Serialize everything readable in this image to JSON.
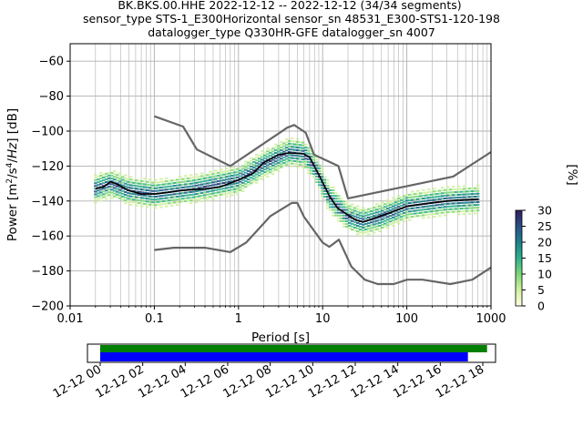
{
  "title_lines": [
    "BK.BKS.00.HHE   2022-12-12 -- 2022-12-12  (34/34 segments)",
    "sensor_type STS-1_E300Horizontal sensor_sn 48531_E300-STS1-120-198",
    "datalogger_type Q330HR-GFE datalogger_sn 4007"
  ],
  "chart_data": {
    "type": "heatmap",
    "xlabel": "Period [s]",
    "ylabel": "Power [m²/s⁴/Hz] [dB]",
    "xscale": "log",
    "xlim": [
      0.01,
      1000
    ],
    "ylim": [
      -200,
      -50
    ],
    "xticks": [
      0.01,
      0.1,
      1,
      10,
      100,
      1000
    ],
    "xtick_labels": [
      "0.01",
      "0.1",
      "1",
      "10",
      "100",
      "1000"
    ],
    "yticks": [
      -200,
      -180,
      -160,
      -140,
      -120,
      -100,
      -80,
      -60
    ],
    "grid": true,
    "series": [
      {
        "role": "noise model high",
        "color": "#666666",
        "points": [
          [
            0.1,
            -91.5
          ],
          [
            0.22,
            -97.4
          ],
          [
            0.32,
            -110.5
          ],
          [
            0.8,
            -120
          ],
          [
            3.8,
            -98
          ],
          [
            4.6,
            -96.5
          ],
          [
            6.3,
            -101
          ],
          [
            7.9,
            -113.5
          ],
          [
            15.4,
            -120
          ],
          [
            20,
            -138.5
          ],
          [
            354.8,
            -126
          ],
          [
            1000,
            -112
          ]
        ]
      },
      {
        "role": "noise model low",
        "color": "#666666",
        "points": [
          [
            0.1,
            -168
          ],
          [
            0.17,
            -166.7
          ],
          [
            0.4,
            -166.7
          ],
          [
            0.8,
            -169.2
          ],
          [
            1.24,
            -163.7
          ],
          [
            2.4,
            -148.6
          ],
          [
            4.3,
            -141.1
          ],
          [
            5,
            -141.1
          ],
          [
            6,
            -149
          ],
          [
            10,
            -163.8
          ],
          [
            12,
            -166.2
          ],
          [
            15.6,
            -162.1
          ],
          [
            21.9,
            -177.5
          ],
          [
            31.6,
            -185
          ],
          [
            45,
            -187.5
          ],
          [
            70,
            -187.5
          ],
          [
            101,
            -185
          ],
          [
            154,
            -185
          ],
          [
            328,
            -187.5
          ],
          [
            600,
            -185
          ],
          [
            1000,
            -178
          ]
        ]
      },
      {
        "role": "mean",
        "color": "#000000",
        "points": [
          [
            0.02,
            -133
          ],
          [
            0.025,
            -132
          ],
          [
            0.03,
            -129
          ],
          [
            0.035,
            -130
          ],
          [
            0.05,
            -134
          ],
          [
            0.07,
            -136
          ],
          [
            0.1,
            -136
          ],
          [
            0.15,
            -135
          ],
          [
            0.2,
            -134
          ],
          [
            0.4,
            -133
          ],
          [
            0.6,
            -132
          ],
          [
            1,
            -128
          ],
          [
            1.5,
            -124
          ],
          [
            2,
            -118
          ],
          [
            3,
            -113.5
          ],
          [
            4,
            -112.5
          ],
          [
            6,
            -113
          ],
          [
            7,
            -115
          ],
          [
            9,
            -125
          ],
          [
            12,
            -137
          ],
          [
            15,
            -144
          ],
          [
            20,
            -148
          ],
          [
            25,
            -151
          ],
          [
            30,
            -152
          ],
          [
            40,
            -150
          ],
          [
            60,
            -147
          ],
          [
            100,
            -143
          ],
          [
            200,
            -141
          ],
          [
            300,
            -140
          ],
          [
            400,
            -139.5
          ],
          [
            700,
            -139
          ]
        ]
      }
    ],
    "density_band": {
      "description": "probability density of segment PSDs",
      "points": [
        [
          0.02,
          -133
        ],
        [
          0.03,
          -130
        ],
        [
          0.05,
          -134
        ],
        [
          0.1,
          -136
        ],
        [
          0.3,
          -133
        ],
        [
          1,
          -128
        ],
        [
          2,
          -119
        ],
        [
          4,
          -112
        ],
        [
          6,
          -113
        ],
        [
          8,
          -120
        ],
        [
          12,
          -138
        ],
        [
          20,
          -149
        ],
        [
          30,
          -152
        ],
        [
          50,
          -149
        ],
        [
          100,
          -143
        ],
        [
          300,
          -140
        ],
        [
          700,
          -139
        ]
      ]
    },
    "colorbar": {
      "label": "[%]",
      "range": [
        0,
        30
      ],
      "ticks": [
        0,
        5,
        10,
        15,
        20,
        25,
        30
      ],
      "colors": [
        "#fffde1",
        "#d2f0a0",
        "#7cd67a",
        "#2fb08c",
        "#1f7f8c",
        "#2b4f86",
        "#2f1e5e"
      ]
    },
    "timeline": {
      "ticks": [
        "12-12 00",
        "12-12 02",
        "12-12 04",
        "12-12 06",
        "12-12 08",
        "12-12 10",
        "12-12 12",
        "12-12 14",
        "12-12 16",
        "12-12 18"
      ],
      "tick_hours": [
        0,
        2,
        4,
        6,
        8,
        10,
        12,
        14,
        16,
        18
      ],
      "range_hours": [
        -0.6,
        18.6
      ],
      "data_bar": {
        "start": 0,
        "end": 18.2,
        "color": "#008000"
      },
      "used_bar": {
        "start": 0,
        "end": 17.3,
        "color": "#0000ff"
      }
    }
  }
}
